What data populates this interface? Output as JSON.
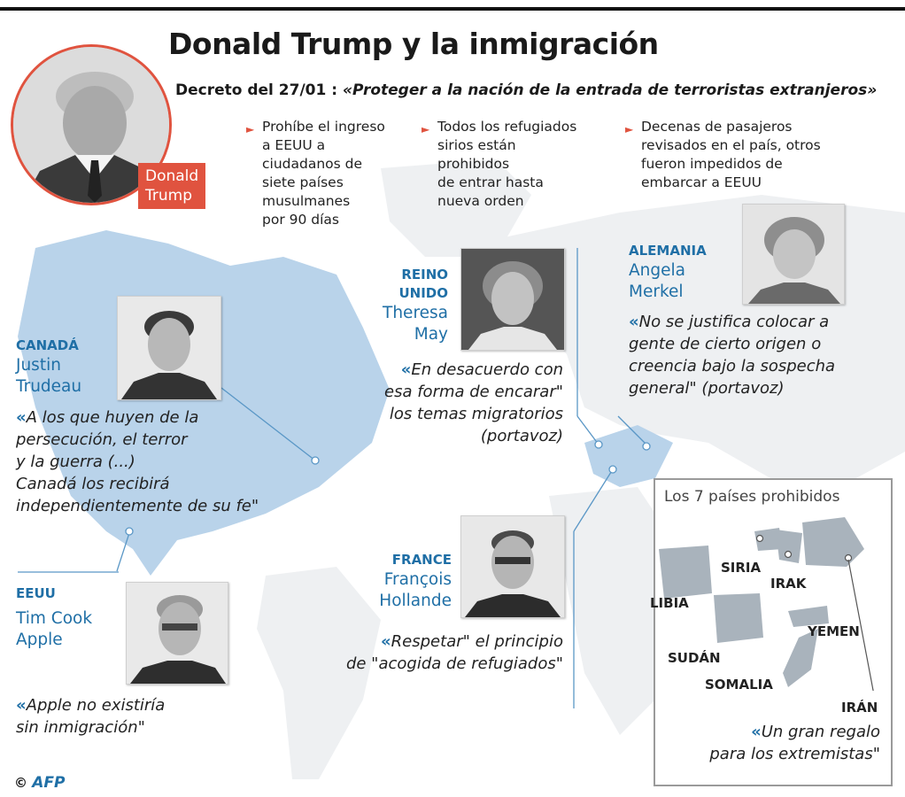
{
  "header": {
    "title": "Donald Trump y la inmigración",
    "subtitle_prefix": "Decreto del 27/01 : ",
    "subtitle_italic": "«Proteger a la nación de la entrada de terroristas extranjeros»"
  },
  "trump": {
    "label_line1": "Donald",
    "label_line2": "Trump"
  },
  "bullets": [
    {
      "lines": [
        "Prohíbe el ingreso",
        "a EEUU a",
        "ciudadanos de",
        "siete países",
        "musulmanes",
        "por 90 días"
      ]
    },
    {
      "lines": [
        "Todos los refugiados",
        "sirios están",
        "prohibidos",
        "de entrar hasta",
        "nueva orden"
      ]
    },
    {
      "lines": [
        "Decenas de pasajeros",
        "revisados en el país, otros",
        "fueron impedidos de",
        "embarcar a EEUU"
      ]
    }
  ],
  "reactions": {
    "canada": {
      "country": "CANADÁ",
      "person_line1": "Justin",
      "person_line2": "Trudeau",
      "quote": [
        "A los que huyen de la",
        "persecución, el terror",
        "y la guerra (...)",
        "Canadá los recibirá",
        "independientemente de su fe\""
      ]
    },
    "eeuu": {
      "country": "EEUU",
      "person_line1": "Tim Cook",
      "person_line2": "Apple",
      "quote": [
        "Apple no existiría",
        "sin inmigración\""
      ]
    },
    "uk": {
      "country_line1": "REINO",
      "country_line2": "UNIDO",
      "person_line1": "Theresa",
      "person_line2": "May",
      "quote": [
        "En desacuerdo con",
        "esa forma de encarar\"",
        "los temas migratorios",
        "(portavoz)"
      ]
    },
    "germany": {
      "country": "ALEMANIA",
      "person_line1": "Angela",
      "person_line2": "Merkel",
      "quote": [
        "No se justifica colocar a",
        "gente de cierto origen o",
        "creencia bajo la sospecha",
        "general\" (portavoz)"
      ]
    },
    "france": {
      "country": "FRANCE",
      "person_line1": "François",
      "person_line2": "Hollande",
      "quote": [
        "Respetar\" el principio",
        "de \"acogida de refugiados\""
      ]
    }
  },
  "inset": {
    "title": "Los 7 países prohibidos",
    "countries": [
      "SIRIA",
      "IRAK",
      "LIBIA",
      "YEMEN",
      "SUDÁN",
      "SOMALIA",
      "IRÁN"
    ],
    "quote": [
      "Un gran regalo",
      "para los extremistas\""
    ]
  },
  "footer": {
    "copyright": "©",
    "agency": "AFP"
  },
  "colors": {
    "accent_red": "#e0533f",
    "accent_blue": "#1f6fa6",
    "map_blue": "#b9d3ea",
    "map_grey": "#eef0f2"
  }
}
